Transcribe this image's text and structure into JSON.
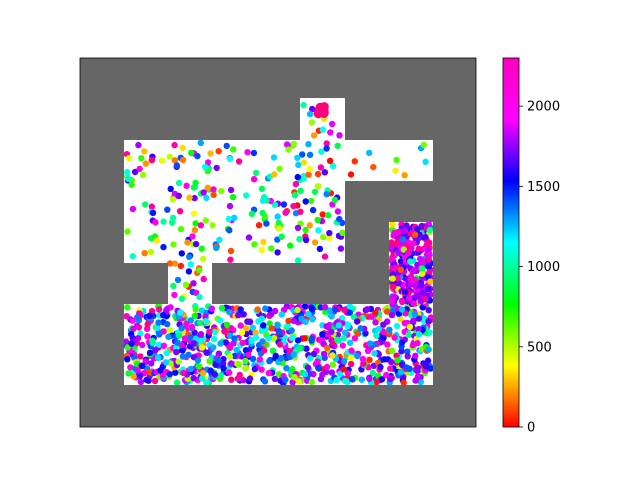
{
  "chart_data": {
    "type": "scatter",
    "title": "",
    "xlabel": "",
    "ylabel": "",
    "grid": false,
    "background_color": "#666666",
    "free_space_color": "#ffffff",
    "colormap": "hsv (red at 0 through yellow, green, cyan, blue, purple to magenta at max)",
    "colorbar": {
      "range": [
        0,
        2300
      ],
      "ticks": [
        "0",
        "500",
        "1000",
        "1500",
        "2000"
      ],
      "tick_values": [
        0,
        500,
        1000,
        1500,
        2000
      ]
    },
    "point_count_estimate": 1800,
    "distribution_note": "points are dense in the lower corridor and right column (mostly high values 1500-2300), sparse in the upper room (mixed values), and a magenta cluster sits at the top of the upper notch"
  }
}
